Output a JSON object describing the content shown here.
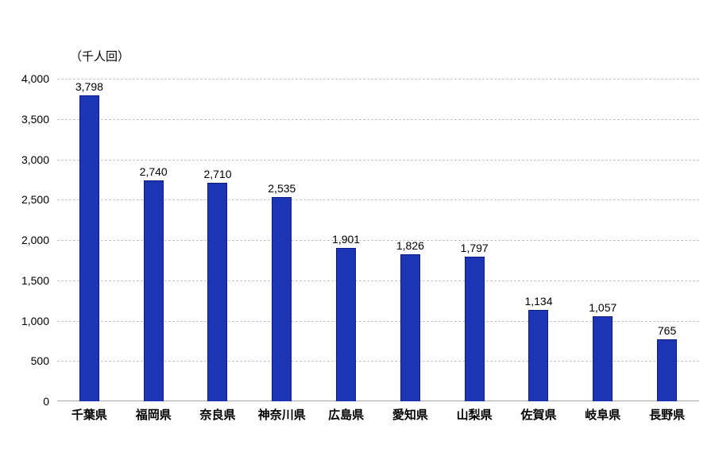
{
  "chart_data": {
    "type": "bar",
    "title": "",
    "unit_label": "（千人回）",
    "categories": [
      "千葉県",
      "福岡県",
      "奈良県",
      "神奈川県",
      "広島県",
      "愛知県",
      "山梨県",
      "佐賀県",
      "岐阜県",
      "長野県"
    ],
    "values": [
      3798,
      2740,
      2710,
      2535,
      1901,
      1826,
      1797,
      1134,
      1057,
      765
    ],
    "value_labels": [
      "3,798",
      "2,740",
      "2,710",
      "2,535",
      "1,901",
      "1,826",
      "1,797",
      "1,134",
      "1,057",
      "765"
    ],
    "y_ticks": [
      0,
      500,
      1000,
      1500,
      2000,
      2500,
      3000,
      3500,
      4000
    ],
    "y_tick_labels": [
      "0",
      "500",
      "1,000",
      "1,500",
      "2,000",
      "2,500",
      "3,000",
      "3,500",
      "4,000"
    ],
    "ylim": [
      0,
      4000
    ],
    "xlabel": "",
    "ylabel": "（千人回）",
    "grid": "horizontal-dashed",
    "legend": "none",
    "colors": {
      "bar_fill": "#1c35b5",
      "bar_border": "#0d1c85",
      "gridline": "#c4c4c4",
      "axis_line": "#a6a6a6",
      "text": "#000000",
      "background": "#ffffff"
    }
  }
}
